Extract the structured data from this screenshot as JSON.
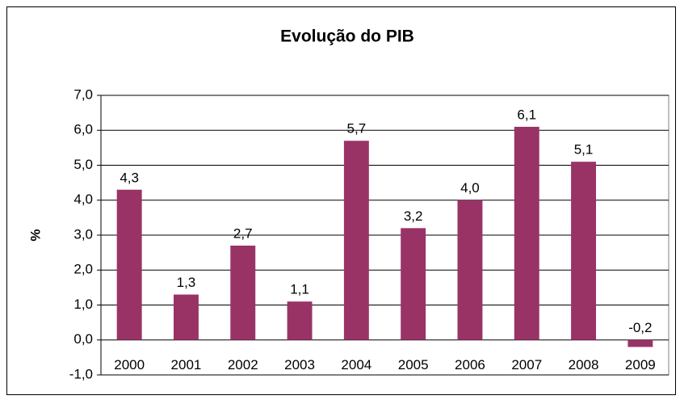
{
  "chart_data": {
    "type": "bar",
    "title": "Evolução do PIB",
    "y_label": "%",
    "categories": [
      "2000",
      "2001",
      "2002",
      "2003",
      "2004",
      "2005",
      "2006",
      "2007",
      "2008",
      "2009"
    ],
    "values": [
      4.3,
      1.3,
      2.7,
      1.1,
      5.7,
      3.2,
      4.0,
      6.1,
      5.1,
      -0.2
    ],
    "value_labels": [
      "4,3",
      "1,3",
      "2,7",
      "1,1",
      "5,7",
      "3,2",
      "4,0",
      "6,1",
      "5,1",
      "-0,2"
    ],
    "color": "#993366",
    "ylim": [
      -1,
      7
    ],
    "yticks": [
      {
        "value": -1,
        "label": "-1,0"
      },
      {
        "value": 0,
        "label": "0,0"
      },
      {
        "value": 1,
        "label": "1,0"
      },
      {
        "value": 2,
        "label": "2,0"
      },
      {
        "value": 3,
        "label": "3,0"
      },
      {
        "value": 4,
        "label": "4,0"
      },
      {
        "value": 5,
        "label": "5,0"
      },
      {
        "value": 6,
        "label": "6,0"
      },
      {
        "value": 7,
        "label": "7,0"
      }
    ],
    "grid": true
  }
}
